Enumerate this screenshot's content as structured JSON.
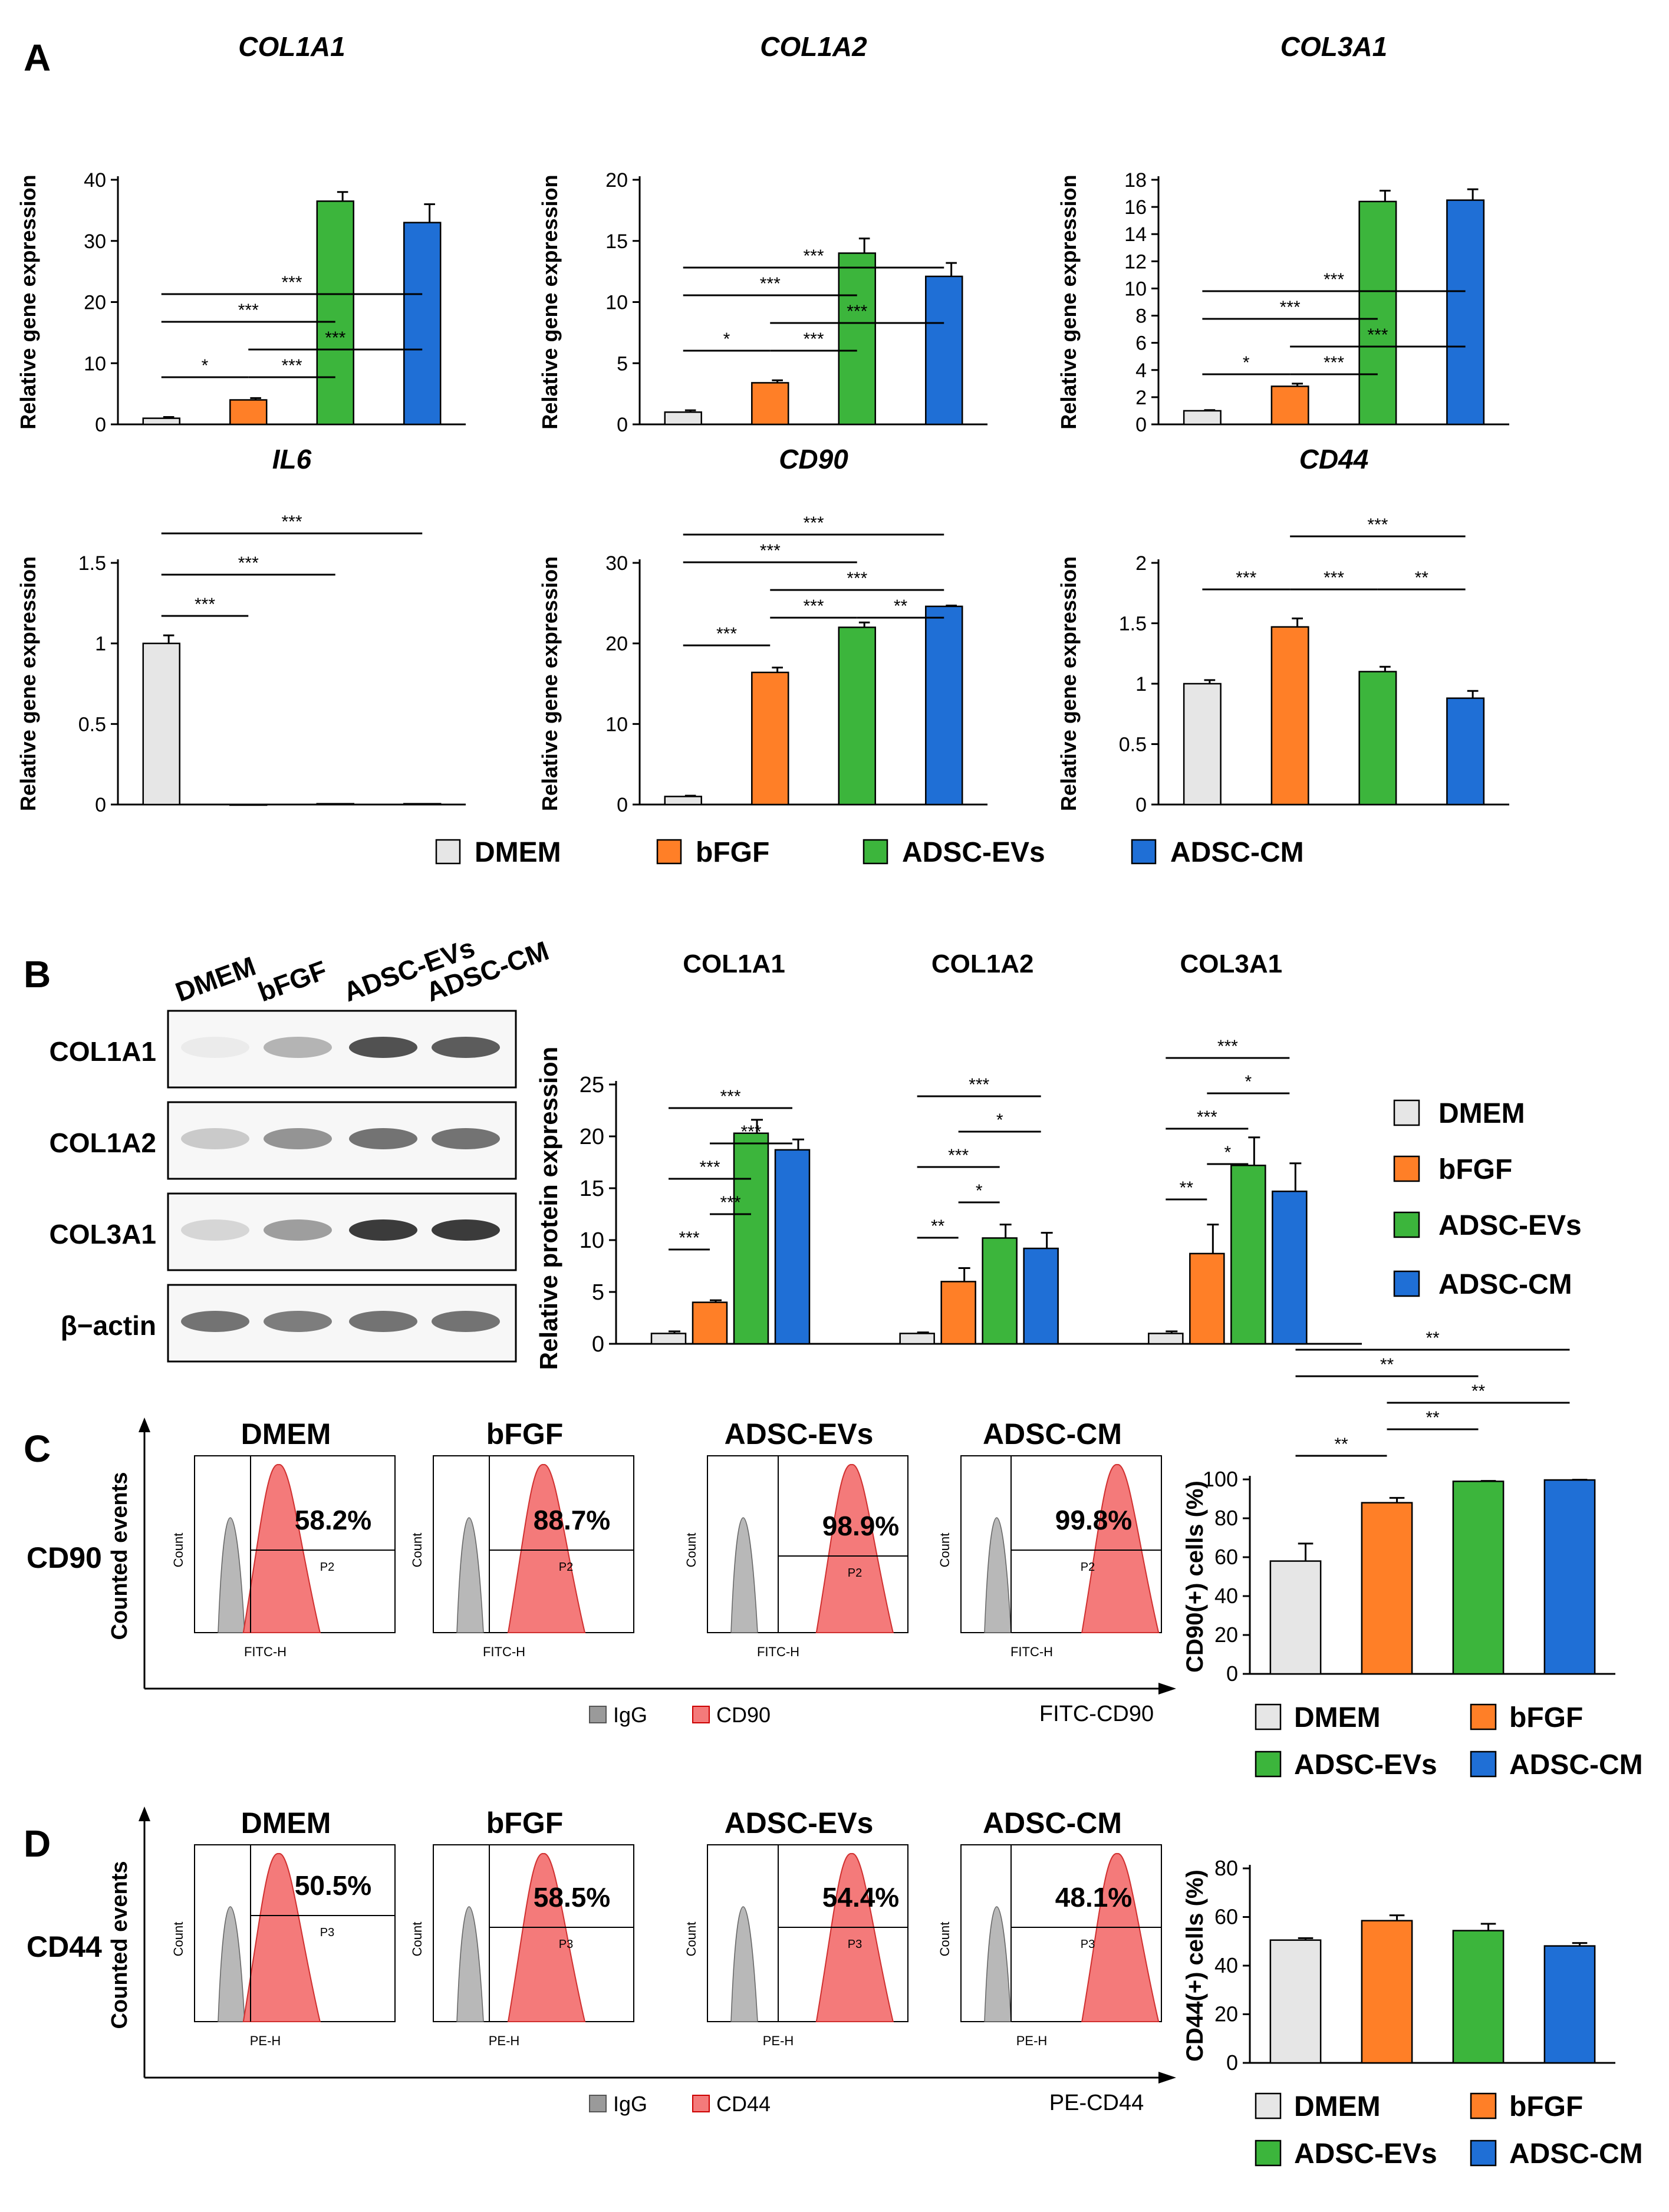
{
  "colors": {
    "DMEM": "#e6e6e6",
    "bFGF": "#ff7f27",
    "ADSC-EVs": "#3cb53c",
    "ADSC-CM": "#1f6fd6",
    "ink": "#000000",
    "red": "#f47a7a",
    "gray": "#9a9a9a"
  },
  "groups": [
    "DMEM",
    "bFGF",
    "ADSC-EVs",
    "ADSC-CM"
  ],
  "panel_letters": {
    "A": "A",
    "B": "B",
    "C": "C",
    "D": "D"
  },
  "panelA": {
    "legend": [
      "DMEM",
      "bFGF",
      "ADSC-EVs",
      "ADSC-CM"
    ],
    "charts": [
      {
        "title": "COL1A1",
        "ylabel": "Relative gene expression",
        "ylim": [
          0,
          40
        ],
        "ticks": [
          "0",
          "10",
          "20",
          "30",
          "40"
        ],
        "values": [
          1,
          4,
          36.5,
          33
        ],
        "errors": [
          0.2,
          0.3,
          1.5,
          3.0
        ],
        "sig": [
          {
            "a": 0,
            "b": 1,
            "label": "*",
            "lvl": 0
          },
          {
            "a": 2,
            "b": 1,
            "label": "***",
            "lvl": 0
          },
          {
            "a": 1,
            "b": 3,
            "label": "***",
            "lvl": 1
          },
          {
            "a": 0,
            "b": 2,
            "label": "***",
            "lvl": 2
          },
          {
            "a": 0,
            "b": 3,
            "label": "***",
            "lvl": 3
          }
        ]
      },
      {
        "title": "COL1A2",
        "ylabel": "Relative gene expression",
        "ylim": [
          0,
          20
        ],
        "ticks": [
          "0",
          "5",
          "10",
          "15",
          "20"
        ],
        "values": [
          1,
          3.4,
          14,
          12.1
        ],
        "errors": [
          0.15,
          0.2,
          1.2,
          1.1
        ],
        "sig": [
          {
            "a": 0,
            "b": 1,
            "label": "*",
            "lvl": 0
          },
          {
            "a": 1,
            "b": 2,
            "label": "***",
            "lvl": 0
          },
          {
            "a": 1,
            "b": 3,
            "label": "***",
            "lvl": 1
          },
          {
            "a": 0,
            "b": 2,
            "label": "***",
            "lvl": 2
          },
          {
            "a": 0,
            "b": 3,
            "label": "***",
            "lvl": 3
          }
        ]
      },
      {
        "title": "COL3A1",
        "ylabel": "Relative gene expression",
        "ylim": [
          0,
          18
        ],
        "ticks": [
          "0",
          "2",
          "4",
          "6",
          "8",
          "10",
          "12",
          "14",
          "16",
          "18"
        ],
        "values": [
          1,
          2.8,
          16.4,
          16.5
        ],
        "errors": [
          0.05,
          0.2,
          0.8,
          0.8
        ],
        "sig": [
          {
            "a": 0,
            "b": 1,
            "label": "*",
            "lvl": 0
          },
          {
            "a": 1,
            "b": 2,
            "label": "***",
            "lvl": 0
          },
          {
            "a": 1,
            "b": 3,
            "label": "***",
            "lvl": 1
          },
          {
            "a": 0,
            "b": 2,
            "label": "***",
            "lvl": 2
          },
          {
            "a": 0,
            "b": 3,
            "label": "***",
            "lvl": 3
          }
        ]
      },
      {
        "title": "IL6",
        "ylabel": "Relative gene expression",
        "ylim": [
          0,
          1.5
        ],
        "ticks": [
          "0",
          "0.5",
          "1",
          "1.5"
        ],
        "values": [
          1,
          0,
          0.005,
          0.005
        ],
        "errors": [
          0.05,
          0,
          0,
          0
        ],
        "sig": [
          {
            "a": 0,
            "b": 1,
            "label": "***",
            "lvl": 0
          },
          {
            "a": 0,
            "b": 2,
            "label": "***",
            "lvl": 1
          },
          {
            "a": 0,
            "b": 3,
            "label": "***",
            "lvl": 2
          }
        ]
      },
      {
        "title": "CD90",
        "ylabel": "Relative gene expression",
        "ylim": [
          0,
          30
        ],
        "ticks": [
          "0",
          "10",
          "20",
          "30"
        ],
        "values": [
          1,
          16.4,
          22,
          24.6
        ],
        "errors": [
          0.1,
          0.6,
          0.6,
          0.1
        ],
        "sig": [
          {
            "a": 0,
            "b": 1,
            "label": "***",
            "lvl": 0
          },
          {
            "a": 1,
            "b": 2,
            "label": "***",
            "lvl": 1
          },
          {
            "a": 2,
            "b": 3,
            "label": "**",
            "lvl": 1
          },
          {
            "a": 1,
            "b": 3,
            "label": "***",
            "lvl": 2
          },
          {
            "a": 0,
            "b": 2,
            "label": "***",
            "lvl": 3
          },
          {
            "a": 0,
            "b": 3,
            "label": "***",
            "lvl": 4
          }
        ]
      },
      {
        "title": "CD44",
        "ylabel": "Relative gene expression",
        "ylim": [
          0,
          2
        ],
        "ticks": [
          "0",
          "0.5",
          "1",
          "1.5",
          "2"
        ],
        "values": [
          1,
          1.47,
          1.1,
          0.88
        ],
        "errors": [
          0.03,
          0.07,
          0.04,
          0.06
        ],
        "sig": [
          {
            "a": 0,
            "b": 1,
            "label": "***",
            "lvl": 0
          },
          {
            "a": 1,
            "b": 2,
            "label": "***",
            "lvl": 0
          },
          {
            "a": 2,
            "b": 3,
            "label": "**",
            "lvl": 0
          },
          {
            "a": 1,
            "b": 3,
            "label": "***",
            "lvl": 1
          }
        ]
      }
    ]
  },
  "panelB": {
    "blot_lanes": [
      "DMEM",
      "bFGF",
      "ADSC-EVs",
      "ADSC-CM"
    ],
    "blot_rows": [
      "COL1A1",
      "COL1A2",
      "COL3A1",
      "β−actin"
    ],
    "chart": {
      "type": "bar",
      "ylabel": "Relative protein expression",
      "ylim": [
        0,
        25
      ],
      "ticks": [
        "0",
        "5",
        "10",
        "15",
        "20",
        "25"
      ],
      "categories": [
        "COL1A1",
        "COL1A2",
        "COL3A1"
      ],
      "series": [
        {
          "name": "DMEM",
          "values": [
            1,
            1,
            1
          ],
          "errors": [
            0.2,
            0.1,
            0.2
          ]
        },
        {
          "name": "bFGF",
          "values": [
            4,
            6,
            8.7
          ],
          "errors": [
            0.2,
            1.3,
            2.8
          ]
        },
        {
          "name": "ADSC-EVs",
          "values": [
            20.3,
            10.2,
            17.2
          ],
          "errors": [
            1.3,
            1.3,
            2.7
          ]
        },
        {
          "name": "ADSC-CM",
          "values": [
            18.7,
            9.2,
            14.7
          ],
          "errors": [
            1.0,
            1.5,
            2.7
          ]
        }
      ],
      "sig": [
        [
          {
            "a": 0,
            "b": 1,
            "label": "***",
            "lvl": 0
          },
          {
            "a": 1,
            "b": 2,
            "label": "***",
            "lvl": 1
          },
          {
            "a": 0,
            "b": 2,
            "label": "***",
            "lvl": 2
          },
          {
            "a": 1,
            "b": 3,
            "label": "***",
            "lvl": 3
          },
          {
            "a": 0,
            "b": 3,
            "label": "***",
            "lvl": 4
          }
        ],
        [
          {
            "a": 0,
            "b": 1,
            "label": "**",
            "lvl": 0
          },
          {
            "a": 1,
            "b": 2,
            "label": "*",
            "lvl": 1
          },
          {
            "a": 0,
            "b": 2,
            "label": "***",
            "lvl": 2
          },
          {
            "a": 1,
            "b": 3,
            "label": "*",
            "lvl": 3
          },
          {
            "a": 0,
            "b": 3,
            "label": "***",
            "lvl": 4
          }
        ],
        [
          {
            "a": 0,
            "b": 1,
            "label": "**",
            "lvl": 0
          },
          {
            "a": 1,
            "b": 2,
            "label": "*",
            "lvl": 1
          },
          {
            "a": 0,
            "b": 2,
            "label": "***",
            "lvl": 2
          },
          {
            "a": 1,
            "b": 3,
            "label": "*",
            "lvl": 3
          },
          {
            "a": 0,
            "b": 3,
            "label": "***",
            "lvl": 4
          }
        ]
      ],
      "legend": [
        "DMEM",
        "bFGF",
        "ADSC-EVs",
        "ADSC-CM"
      ]
    }
  },
  "panelC": {
    "marker": "CD90",
    "y_axis": "Counted events",
    "x_axis": "FITC-CD90",
    "hist_xlabel": "FITC-H",
    "hist_ylabel": "Count",
    "gate": "P2",
    "samples": [
      {
        "name": "DMEM",
        "pct": "58.2%"
      },
      {
        "name": "bFGF",
        "pct": "88.7%"
      },
      {
        "name": "ADSC-EVs",
        "pct": "98.9%"
      },
      {
        "name": "ADSC-CM",
        "pct": "99.8%"
      }
    ],
    "legend": [
      "IgG",
      "CD90"
    ],
    "chart": {
      "type": "bar",
      "ylabel": "CD90(+) cells (%)",
      "ylim": [
        0,
        100
      ],
      "ticks": [
        "0",
        "20",
        "40",
        "60",
        "80",
        "100"
      ],
      "values": [
        58,
        88,
        99,
        99.7
      ],
      "errors": [
        9,
        2.5,
        0.2,
        0.1
      ],
      "sig": [
        {
          "a": 0,
          "b": 1,
          "label": "**",
          "lvl": 0
        },
        {
          "a": 1,
          "b": 2,
          "label": "**",
          "lvl": 1
        },
        {
          "a": 1,
          "b": 3,
          "label": "**",
          "lvl": 2
        },
        {
          "a": 0,
          "b": 2,
          "label": "**",
          "lvl": 3
        },
        {
          "a": 0,
          "b": 3,
          "label": "**",
          "lvl": 4
        }
      ],
      "legend": [
        "DMEM",
        "bFGF",
        "ADSC-EVs",
        "ADSC-CM"
      ]
    }
  },
  "panelD": {
    "marker": "CD44",
    "y_axis": "Counted events",
    "x_axis": "PE-CD44",
    "hist_xlabel": "PE-H",
    "hist_ylabel": "Count",
    "gate": "P3",
    "samples": [
      {
        "name": "DMEM",
        "pct": "50.5%"
      },
      {
        "name": "bFGF",
        "pct": "58.5%"
      },
      {
        "name": "ADSC-EVs",
        "pct": "54.4%"
      },
      {
        "name": "ADSC-CM",
        "pct": "48.1%"
      }
    ],
    "legend": [
      "IgG",
      "CD44"
    ],
    "chart": {
      "type": "bar",
      "ylabel": "CD44(+) cells (%)",
      "ylim": [
        0,
        80
      ],
      "ticks": [
        "0",
        "20",
        "40",
        "60",
        "80"
      ],
      "values": [
        50.5,
        58.5,
        54.4,
        48.1
      ],
      "errors": [
        0.8,
        2.2,
        2.8,
        1.2
      ],
      "sig": [],
      "legend": [
        "DMEM",
        "bFGF",
        "ADSC-EVs",
        "ADSC-CM"
      ]
    }
  },
  "chart_data": [
    {
      "type": "bar",
      "title": "COL1A1",
      "categories": [
        "DMEM",
        "bFGF",
        "ADSC-EVs",
        "ADSC-CM"
      ],
      "values": [
        1,
        4,
        36.5,
        33
      ],
      "ylabel": "Relative gene expression",
      "ylim": [
        0,
        40
      ]
    },
    {
      "type": "bar",
      "title": "COL1A2",
      "categories": [
        "DMEM",
        "bFGF",
        "ADSC-EVs",
        "ADSC-CM"
      ],
      "values": [
        1,
        3.4,
        14,
        12.1
      ],
      "ylabel": "Relative gene expression",
      "ylim": [
        0,
        20
      ]
    },
    {
      "type": "bar",
      "title": "COL3A1",
      "categories": [
        "DMEM",
        "bFGF",
        "ADSC-EVs",
        "ADSC-CM"
      ],
      "values": [
        1,
        2.8,
        16.4,
        16.5
      ],
      "ylabel": "Relative gene expression",
      "ylim": [
        0,
        18
      ]
    },
    {
      "type": "bar",
      "title": "IL6",
      "categories": [
        "DMEM",
        "bFGF",
        "ADSC-EVs",
        "ADSC-CM"
      ],
      "values": [
        1,
        0,
        0.005,
        0.005
      ],
      "ylabel": "Relative gene expression",
      "ylim": [
        0,
        1.5
      ]
    },
    {
      "type": "bar",
      "title": "CD90",
      "categories": [
        "DMEM",
        "bFGF",
        "ADSC-EVs",
        "ADSC-CM"
      ],
      "values": [
        1,
        16.4,
        22,
        24.6
      ],
      "ylabel": "Relative gene expression",
      "ylim": [
        0,
        30
      ]
    },
    {
      "type": "bar",
      "title": "CD44",
      "categories": [
        "DMEM",
        "bFGF",
        "ADSC-EVs",
        "ADSC-CM"
      ],
      "values": [
        1,
        1.47,
        1.1,
        0.88
      ],
      "ylabel": "Relative gene expression",
      "ylim": [
        0,
        2
      ]
    },
    {
      "type": "bar",
      "title": "Relative protein expression",
      "categories": [
        "COL1A1",
        "COL1A2",
        "COL3A1"
      ],
      "series": [
        {
          "name": "DMEM",
          "values": [
            1,
            1,
            1
          ]
        },
        {
          "name": "bFGF",
          "values": [
            4,
            6,
            8.7
          ]
        },
        {
          "name": "ADSC-EVs",
          "values": [
            20.3,
            10.2,
            17.2
          ]
        },
        {
          "name": "ADSC-CM",
          "values": [
            18.7,
            9.2,
            14.7
          ]
        }
      ],
      "ylim": [
        0,
        25
      ]
    },
    {
      "type": "bar",
      "title": "CD90(+) cells (%)",
      "categories": [
        "DMEM",
        "bFGF",
        "ADSC-EVs",
        "ADSC-CM"
      ],
      "values": [
        58,
        88,
        99,
        99.7
      ],
      "ylim": [
        0,
        100
      ]
    },
    {
      "type": "bar",
      "title": "CD44(+) cells (%)",
      "categories": [
        "DMEM",
        "bFGF",
        "ADSC-EVs",
        "ADSC-CM"
      ],
      "values": [
        50.5,
        58.5,
        54.4,
        48.1
      ],
      "ylim": [
        0,
        80
      ]
    }
  ]
}
